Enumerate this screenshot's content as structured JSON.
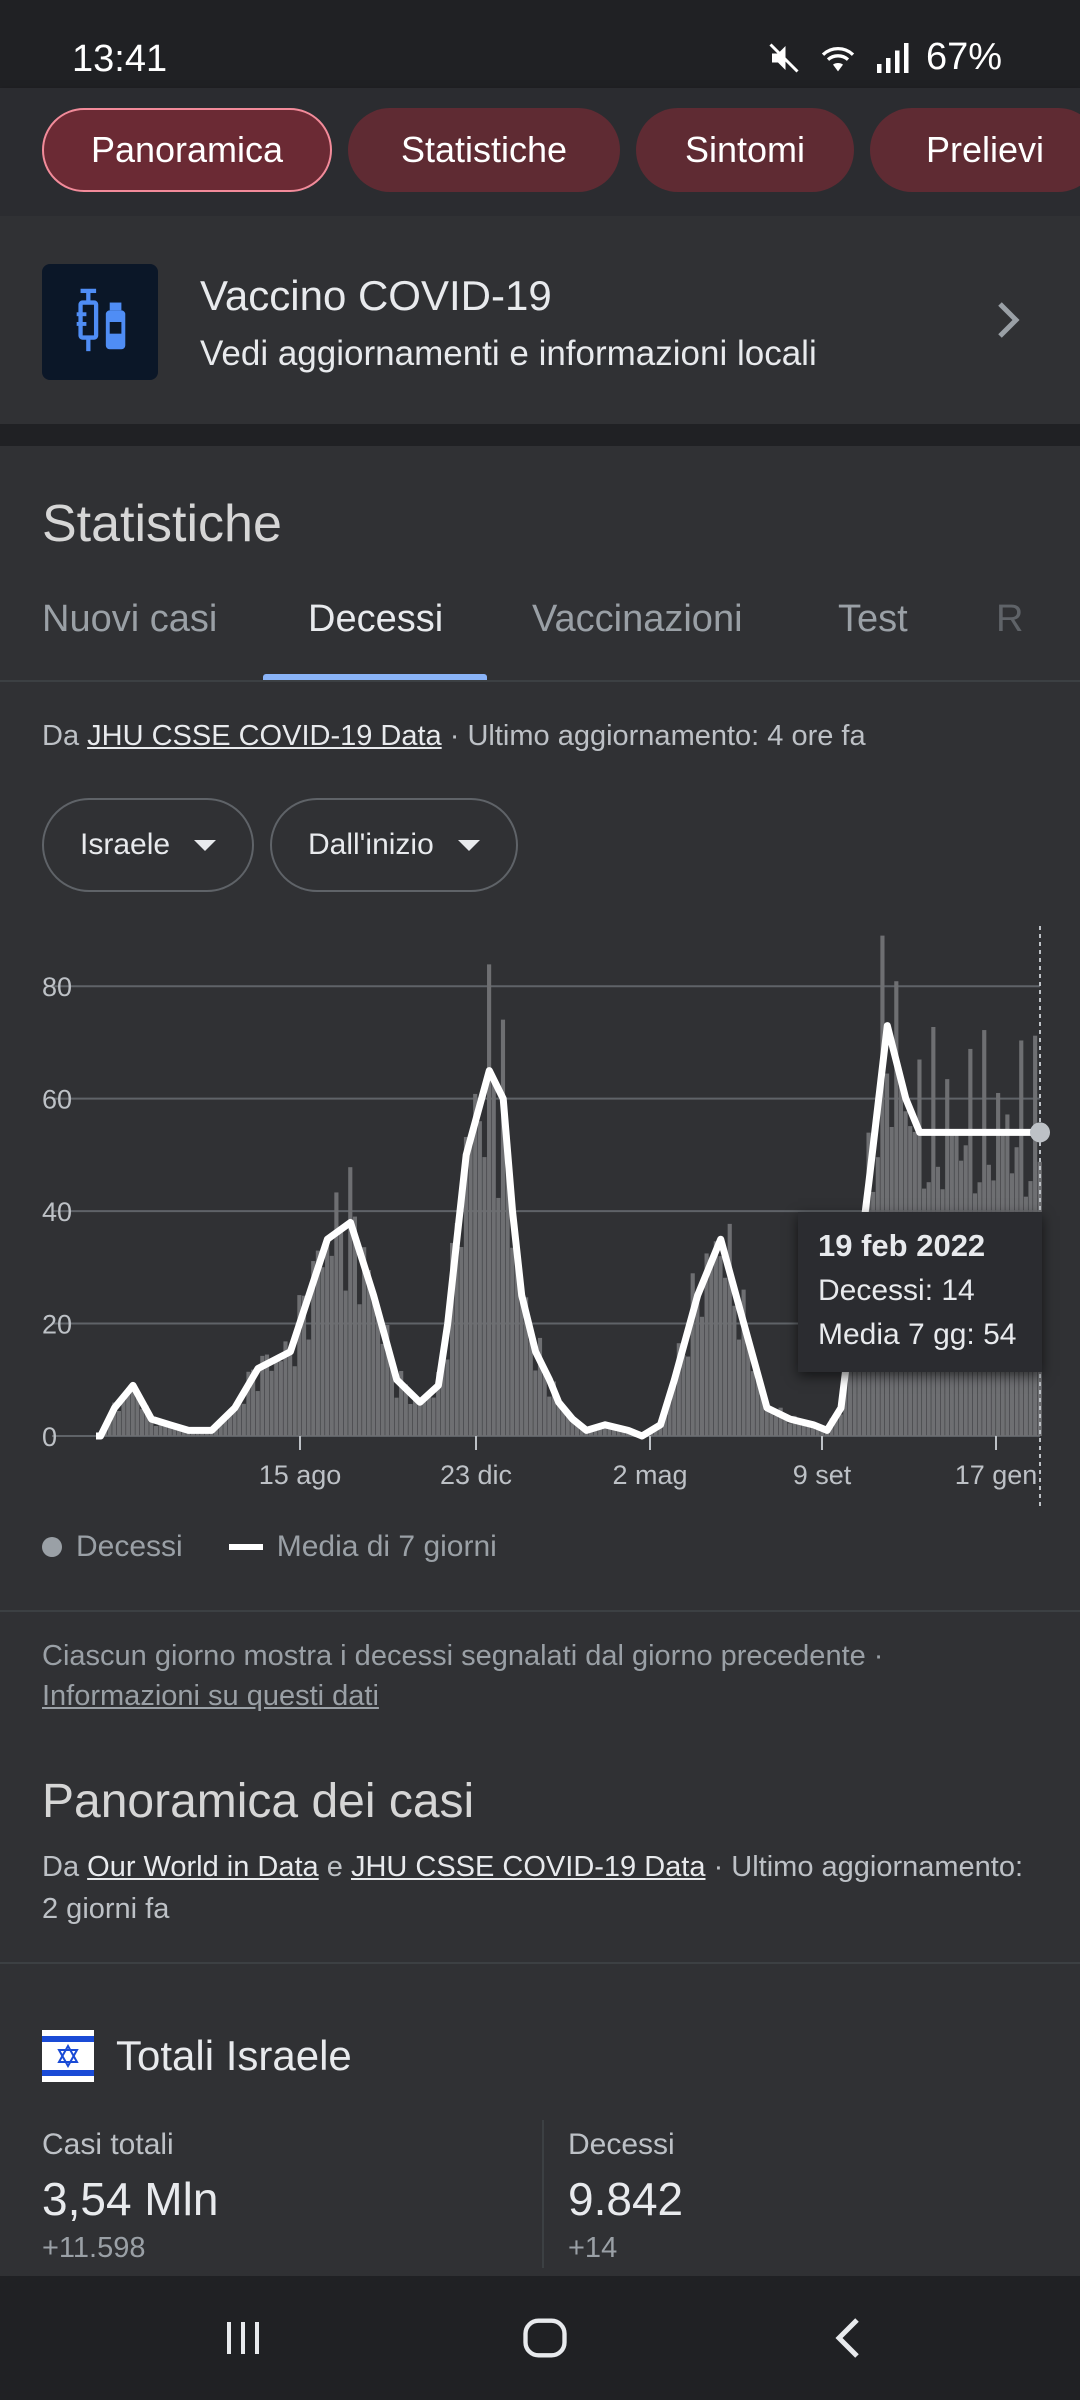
{
  "status_bar": {
    "time": "13:41",
    "battery": "67%"
  },
  "top_pills": [
    "Panoramica",
    "Statistiche",
    "Sintomi",
    "Prelievi"
  ],
  "vaccine_card": {
    "title": "Vaccino COVID-19",
    "subtitle": "Vedi aggiornamenti e informazioni locali"
  },
  "stats": {
    "heading": "Statistiche",
    "tabs": [
      "Nuovi casi",
      "Decessi",
      "Vaccinazioni",
      "Test",
      "R"
    ],
    "active_tab": "Decessi",
    "source_prefix": "Da",
    "source_link": "JHU CSSE COVID-19 Data",
    "source_suffix": "· Ultimo aggiornamento: 4 ore fa",
    "dropdowns": [
      "Israele",
      "Dall'inizio"
    ]
  },
  "chart_data": {
    "type": "bar",
    "ylim": [
      0,
      90
    ],
    "yticks": [
      0,
      20,
      40,
      60,
      80
    ],
    "xticks": [
      "15 ago",
      "23 dic",
      "2 mag",
      "9 set",
      "17 gen"
    ],
    "legend": [
      "Decessi",
      "Media di 7 giorni"
    ],
    "series": [
      {
        "name": "Decessi",
        "type": "bar"
      },
      {
        "name": "Media di 7 giorni",
        "type": "line",
        "x": [
          0,
          1,
          4,
          8,
          12,
          16,
          20,
          25,
          30,
          35,
          42,
          50,
          55,
          60,
          65,
          70,
          74,
          76,
          78,
          80,
          85,
          88,
          90,
          92,
          95,
          98,
          100,
          103,
          106,
          110,
          115,
          118,
          122,
          125,
          130,
          135,
          140,
          145,
          150,
          155,
          158,
          161,
          164,
          167,
          171,
          175,
          178,
          181,
          184,
          187,
          190,
          192,
          194,
          196,
          198,
          200,
          202,
          204
        ],
        "values": [
          0,
          0,
          5,
          9,
          3,
          2,
          1,
          1,
          5,
          12,
          15,
          35,
          38,
          25,
          10,
          6,
          9,
          20,
          35,
          50,
          65,
          60,
          40,
          25,
          15,
          10,
          6,
          3,
          1,
          2,
          1,
          0,
          2,
          10,
          25,
          35,
          20,
          5,
          3,
          2,
          1,
          5,
          25,
          45,
          73,
          60,
          54,
          54,
          54,
          54,
          54,
          54,
          54,
          54,
          54,
          54,
          54,
          54
        ]
      }
    ],
    "tooltip": {
      "date": "19 feb 2022",
      "deaths": "Decessi: 14",
      "avg": "Media 7 gg: 54"
    }
  },
  "note": {
    "text": "Ciascun giorno mostra i decessi segnalati dal giorno precedente  ·",
    "link": "Informazioni su questi dati"
  },
  "cases": {
    "heading": "Panoramica dei casi",
    "src_prefix": "Da",
    "src_link1": "Our World in Data",
    "src_and": "e",
    "src_link2": "JHU CSSE COVID-19 Data",
    "src_suffix": "· Ultimo aggiornamento: 2 giorni fa",
    "totals_title": "Totali Israele",
    "total_cases_label": "Casi totali",
    "total_cases_value": "3,54 Mln",
    "total_cases_delta": "+11.598",
    "deaths_label": "Decessi",
    "deaths_value": "9.842",
    "deaths_delta": "+14"
  },
  "colors": {
    "accent": "#8ab4f8",
    "pill_bg": "#5f2b33",
    "bar": "#6e6f72",
    "line": "#ffffff"
  }
}
